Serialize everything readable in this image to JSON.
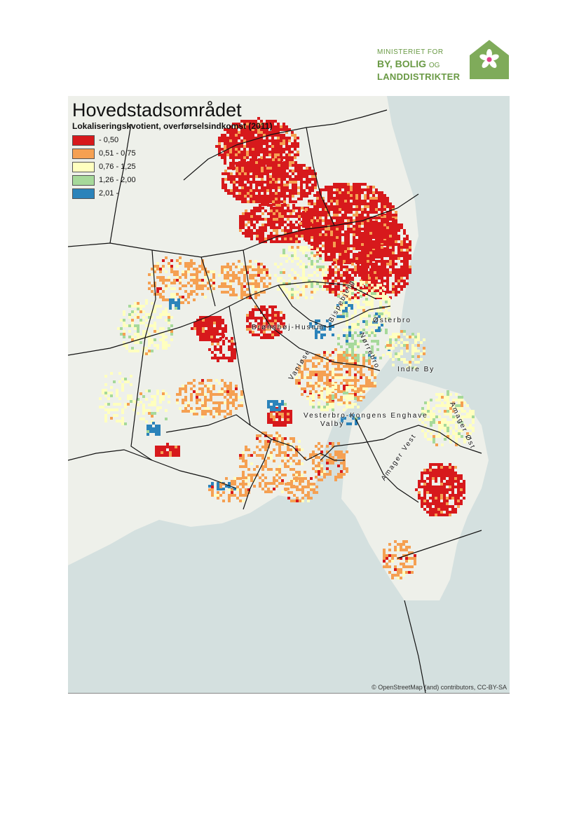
{
  "logo": {
    "line1": "MINISTERIET FOR",
    "line2": "BY, BOLIG",
    "line2_small": "OG",
    "line3": "LANDDISTRIKTER",
    "color": "#6a9a45"
  },
  "map": {
    "title": "Hovedstadsområdet",
    "subtitle": "Lokaliseringskvotient, overførselsindkomst (2011)",
    "legend": [
      {
        "label": "- 0,50",
        "color": "#d7191c"
      },
      {
        "label": "0,51 - 0,75",
        "color": "#f5a052"
      },
      {
        "label": "0,76 - 1,25",
        "color": "#ffffbf"
      },
      {
        "label": "1,26 - 2,00",
        "color": "#a6d99a"
      },
      {
        "label": "2,01 -",
        "color": "#2b83ba"
      }
    ],
    "places": [
      {
        "name": "Brønshøj-Husum",
        "id": "bronshoj"
      },
      {
        "name": "Bispebjerg",
        "id": "bispebjerg"
      },
      {
        "name": "Østerbro",
        "id": "osterbro"
      },
      {
        "name": "Nørrebro",
        "id": "norrebro"
      },
      {
        "name": "Vanløse",
        "id": "vanlose"
      },
      {
        "name": "Indre By",
        "id": "indreby"
      },
      {
        "name": "Vesterbro-Kongens Enghave",
        "id": "vesterbro"
      },
      {
        "name": "Valby",
        "id": "valby"
      },
      {
        "name": "Amager Vest",
        "id": "amagervest"
      },
      {
        "name": "Amager Øst",
        "id": "amagerost"
      }
    ],
    "attribution": "© OpenStreetMap (and) contributors, CC-BY-SA",
    "water_color": "#d4e0df",
    "land_color": "#eef0ea"
  }
}
